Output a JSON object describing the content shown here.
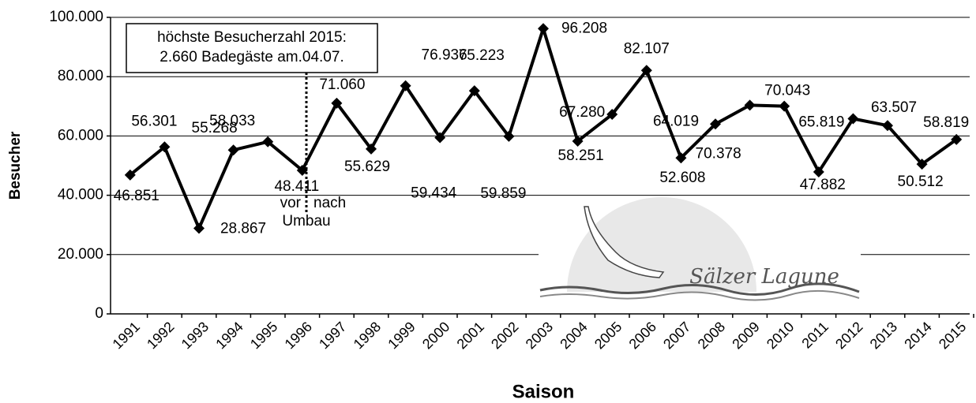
{
  "chart_data": {
    "type": "line",
    "y_label": "Besucher",
    "x_label": "Saison",
    "categories": [
      "1991",
      "1992",
      "1993",
      "1994",
      "1995",
      "1996",
      "1997",
      "1998",
      "1999",
      "2000",
      "2001",
      "2002",
      "2003",
      "2004",
      "2005",
      "2006",
      "2007",
      "2008",
      "2009",
      "2010",
      "2011",
      "2012",
      "2013",
      "2014",
      "2015"
    ],
    "values": [
      46851,
      56301,
      28867,
      55268,
      58033,
      48411,
      71060,
      55629,
      76936,
      59434,
      75223,
      59859,
      96208,
      58251,
      67280,
      82107,
      52608,
      64019,
      70378,
      70043,
      47882,
      65819,
      63507,
      50512,
      58819
    ],
    "value_labels": [
      "46.851",
      "56.301",
      "28.867",
      "55.268",
      "58.033",
      "48.411",
      "71.060",
      "55.629",
      "76.936",
      "59.434",
      "75.223",
      "59.859",
      "96.208",
      "58.251",
      "67.280",
      "82.107",
      "52.608",
      "64.019",
      "70.378",
      "70.043",
      "47.882",
      "65.819",
      "63.507",
      "50.512",
      "58.819"
    ],
    "color": "#000000",
    "ylim": [
      0,
      100000
    ],
    "yticks": [
      0,
      {
        "value": 20000,
        "label": "20.000"
      },
      {
        "value": 40000,
        "label": "40.000"
      },
      {
        "value": 60000,
        "label": "60.000"
      },
      {
        "value": 80000,
        "label": "80.000"
      },
      {
        "value": 100000,
        "label": "100.000"
      }
    ],
    "grid": true,
    "annotations": {
      "box": [
        "höchste Besucherzahl 2015:",
        "2.660 Badegäste am.04.07."
      ],
      "before": "vor",
      "after": "nach",
      "event": "Umbau"
    },
    "logo_text": "Sälzer Lagune"
  }
}
